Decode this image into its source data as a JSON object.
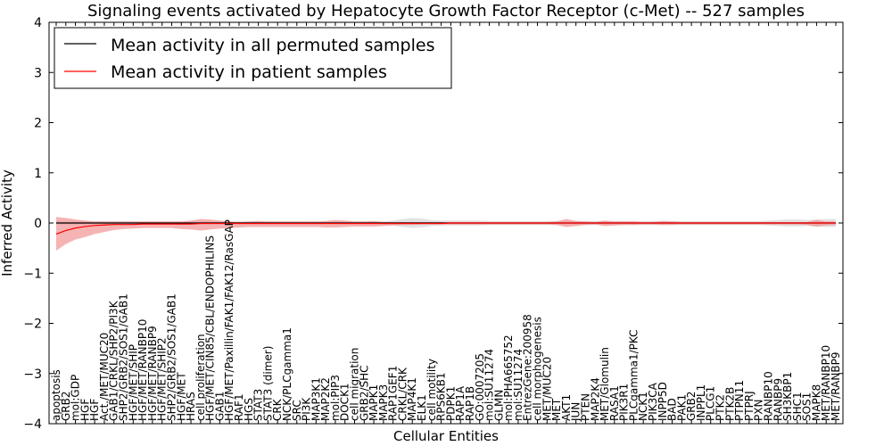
{
  "chart_data": {
    "type": "line",
    "title": "Signaling events activated by Hepatocyte Growth Factor Receptor (c-Met) -- 527 samples",
    "xlabel": "Cellular Entities",
    "ylabel": "Inferred Activity",
    "ylim": [
      -4,
      4
    ],
    "yticks": [
      -4,
      -3,
      -2,
      -1,
      0,
      1,
      2,
      3,
      4
    ],
    "grid": false,
    "legend_position": "top-left",
    "categories": [
      "apoptosis",
      "GRB2",
      "mol:GDP",
      "HGF",
      "HGF",
      "Act./MET/MUC20",
      "GAB1/CRKL/SHP2/PI3K",
      "SHP2/GRB2/SOS1/GAB1",
      "HGF/MET/SHIP",
      "HGF/MET/RANBP10",
      "HGF/MET/RANBP9",
      "HGF/MET/SHIP2",
      "SHP2/GRB2/SOS1/GAB1",
      "HGF/MET",
      "HRAS",
      "cell proliferation",
      "HGF/MET/CIN85/CBL/ENDOPHILINS",
      "GAB1",
      "HGF/MET/Paxillin/FAK1/FAK12/RasGAP",
      "RAF1",
      "HGS",
      "STAT3",
      "STAT3 (dimer)",
      "CRK",
      "NCK/PLCgamma1",
      "SRC",
      "PI3K",
      "MAP3K1",
      "MAP2K2",
      "mol:PIP3",
      "DOCK1",
      "cell migration",
      "GRB2/SHC",
      "MAPK1",
      "MAPK3",
      "RAP1GEF1",
      "CRKL/CRK",
      "MAP4K1",
      "ELK1",
      "cell motility",
      "RPS6KB1",
      "PDPK1",
      "RAP1A",
      "RAP1B",
      "GO:0007205",
      "mol:SU11274",
      "GLMN",
      "mol:PHA665752",
      "mol:SU11274",
      "EntrezGene:200958",
      "cell morphogenesis",
      "MET/MUC20",
      "MET",
      "AKT1",
      "JUN",
      "PTEN",
      "MAP2K4",
      "MET/Glomulin",
      "RASA1",
      "PIK3R1",
      "PLCgamma1/PKC",
      "NCK1",
      "PIK3CA",
      "INPP5D",
      "BAD",
      "PAK1",
      "GRB2",
      "INPPL1",
      "PLCG1",
      "PTK2",
      "PTK2B",
      "PTPN11",
      "PTPRJ",
      "PXN",
      "RANBP10",
      "RANBP9",
      "SH3KBP1",
      "SHC1",
      "SOS1",
      "MAPK8",
      "MET/RANBP10",
      "MET/RANBP9"
    ],
    "series": [
      {
        "name": "Mean activity in all permuted samples",
        "color": "#000000",
        "mean": [
          0,
          0,
          0,
          0,
          0,
          0,
          0,
          0,
          0,
          0,
          0,
          0,
          0,
          0,
          0,
          0,
          0,
          0,
          0,
          0,
          0,
          0,
          0,
          0,
          0,
          0,
          0,
          0,
          0,
          0,
          0,
          0,
          0,
          0,
          0,
          0,
          0,
          0,
          0,
          0,
          0,
          0,
          0,
          0,
          0,
          0,
          0,
          0,
          0,
          0,
          0,
          0,
          0,
          0,
          0,
          0,
          0,
          0,
          0,
          0,
          0,
          0,
          0,
          0,
          0,
          0,
          0,
          0,
          0,
          0,
          0,
          0,
          0,
          0,
          0,
          0,
          0,
          0,
          0,
          0,
          0,
          0
        ],
        "band": [
          0.03,
          0.03,
          0.03,
          0.03,
          0.03,
          0.03,
          0.03,
          0.03,
          0.03,
          0.03,
          0.03,
          0.03,
          0.03,
          0.03,
          0.03,
          0.03,
          0.03,
          0.03,
          0.03,
          0.03,
          0.03,
          0.03,
          0.03,
          0.03,
          0.03,
          0.03,
          0.03,
          0.03,
          0.03,
          0.03,
          0.03,
          0.03,
          0.03,
          0.03,
          0.03,
          0.05,
          0.08,
          0.1,
          0.09,
          0.06,
          0.05,
          0.05,
          0.05,
          0.05,
          0.05,
          0.04,
          0.04,
          0.04,
          0.04,
          0.04,
          0.04,
          0.04,
          0.04,
          0.04,
          0.04,
          0.04,
          0.04,
          0.04,
          0.04,
          0.04,
          0.04,
          0.04,
          0.04,
          0.04,
          0.04,
          0.04,
          0.04,
          0.04,
          0.04,
          0.04,
          0.04,
          0.04,
          0.04,
          0.04,
          0.05,
          0.06,
          0.07,
          0.07,
          0.06,
          0.07,
          0.08,
          0.08
        ]
      },
      {
        "name": "Mean activity in patient samples",
        "color": "#ff0000",
        "mean": [
          -0.22,
          -0.15,
          -0.1,
          -0.07,
          -0.05,
          -0.04,
          -0.03,
          -0.03,
          -0.03,
          -0.02,
          -0.02,
          -0.02,
          -0.02,
          -0.02,
          -0.02,
          -0.01,
          -0.01,
          -0.01,
          -0.01,
          -0.01,
          -0.01,
          -0.01,
          -0.01,
          -0.01,
          -0.01,
          -0.01,
          -0.01,
          -0.01,
          -0.01,
          -0.01,
          -0.01,
          -0.01,
          -0.01,
          -0.01,
          -0.01,
          -0.01,
          -0.01,
          -0.01,
          -0.01,
          -0.01,
          -0.01,
          0,
          0,
          0,
          0,
          0,
          0,
          0,
          0,
          0,
          0,
          0,
          0,
          0,
          0,
          0,
          0,
          0,
          0,
          0,
          0,
          0,
          0,
          0,
          0,
          0,
          0,
          0,
          0,
          0,
          0,
          0,
          0,
          0,
          0,
          0,
          0,
          0,
          0,
          0,
          0,
          0
        ],
        "band_upper": [
          0.12,
          0.1,
          0.07,
          0.05,
          0.03,
          0.03,
          0.03,
          0.03,
          0.03,
          0.03,
          0.03,
          0.03,
          0.03,
          0.03,
          0.05,
          0.08,
          0.07,
          0.05,
          0.03,
          0.02,
          0.03,
          0.04,
          0.03,
          0.03,
          0.03,
          0.03,
          0.03,
          0.03,
          0.04,
          0.06,
          0.05,
          0.03,
          0.03,
          0.04,
          0.02,
          0.02,
          0.02,
          0.02,
          0.02,
          0.02,
          0.02,
          0.02,
          0.02,
          0.02,
          0.02,
          0.02,
          0.02,
          0.02,
          0.02,
          0.02,
          0.02,
          0.02,
          0.03,
          0.08,
          0.04,
          0.03,
          0.02,
          0.05,
          0.03,
          0.03,
          0.03,
          0.02,
          0.02,
          0.04,
          0.03,
          0.02,
          0.02,
          0.02,
          0.02,
          0.02,
          0.02,
          0.02,
          0.02,
          0.02,
          0.02,
          0.02,
          0.02,
          0.02,
          0.02,
          0.06,
          0.03,
          0.03
        ],
        "band_lower": [
          -0.55,
          -0.42,
          -0.33,
          -0.28,
          -0.22,
          -0.18,
          -0.14,
          -0.12,
          -0.11,
          -0.1,
          -0.1,
          -0.1,
          -0.1,
          -0.12,
          -0.13,
          -0.15,
          -0.13,
          -0.11,
          -0.1,
          -0.09,
          -0.08,
          -0.08,
          -0.08,
          -0.08,
          -0.08,
          -0.08,
          -0.08,
          -0.08,
          -0.09,
          -0.09,
          -0.08,
          -0.07,
          -0.07,
          -0.07,
          -0.06,
          -0.05,
          -0.04,
          -0.04,
          -0.03,
          -0.03,
          -0.03,
          -0.03,
          -0.03,
          -0.03,
          -0.03,
          -0.03,
          -0.03,
          -0.03,
          -0.03,
          -0.03,
          -0.03,
          -0.03,
          -0.04,
          -0.08,
          -0.06,
          -0.04,
          -0.03,
          -0.06,
          -0.05,
          -0.04,
          -0.04,
          -0.03,
          -0.03,
          -0.04,
          -0.04,
          -0.03,
          -0.03,
          -0.03,
          -0.03,
          -0.03,
          -0.03,
          -0.03,
          -0.03,
          -0.03,
          -0.03,
          -0.03,
          -0.03,
          -0.03,
          -0.04,
          -0.07,
          -0.05,
          -0.04
        ]
      }
    ]
  }
}
